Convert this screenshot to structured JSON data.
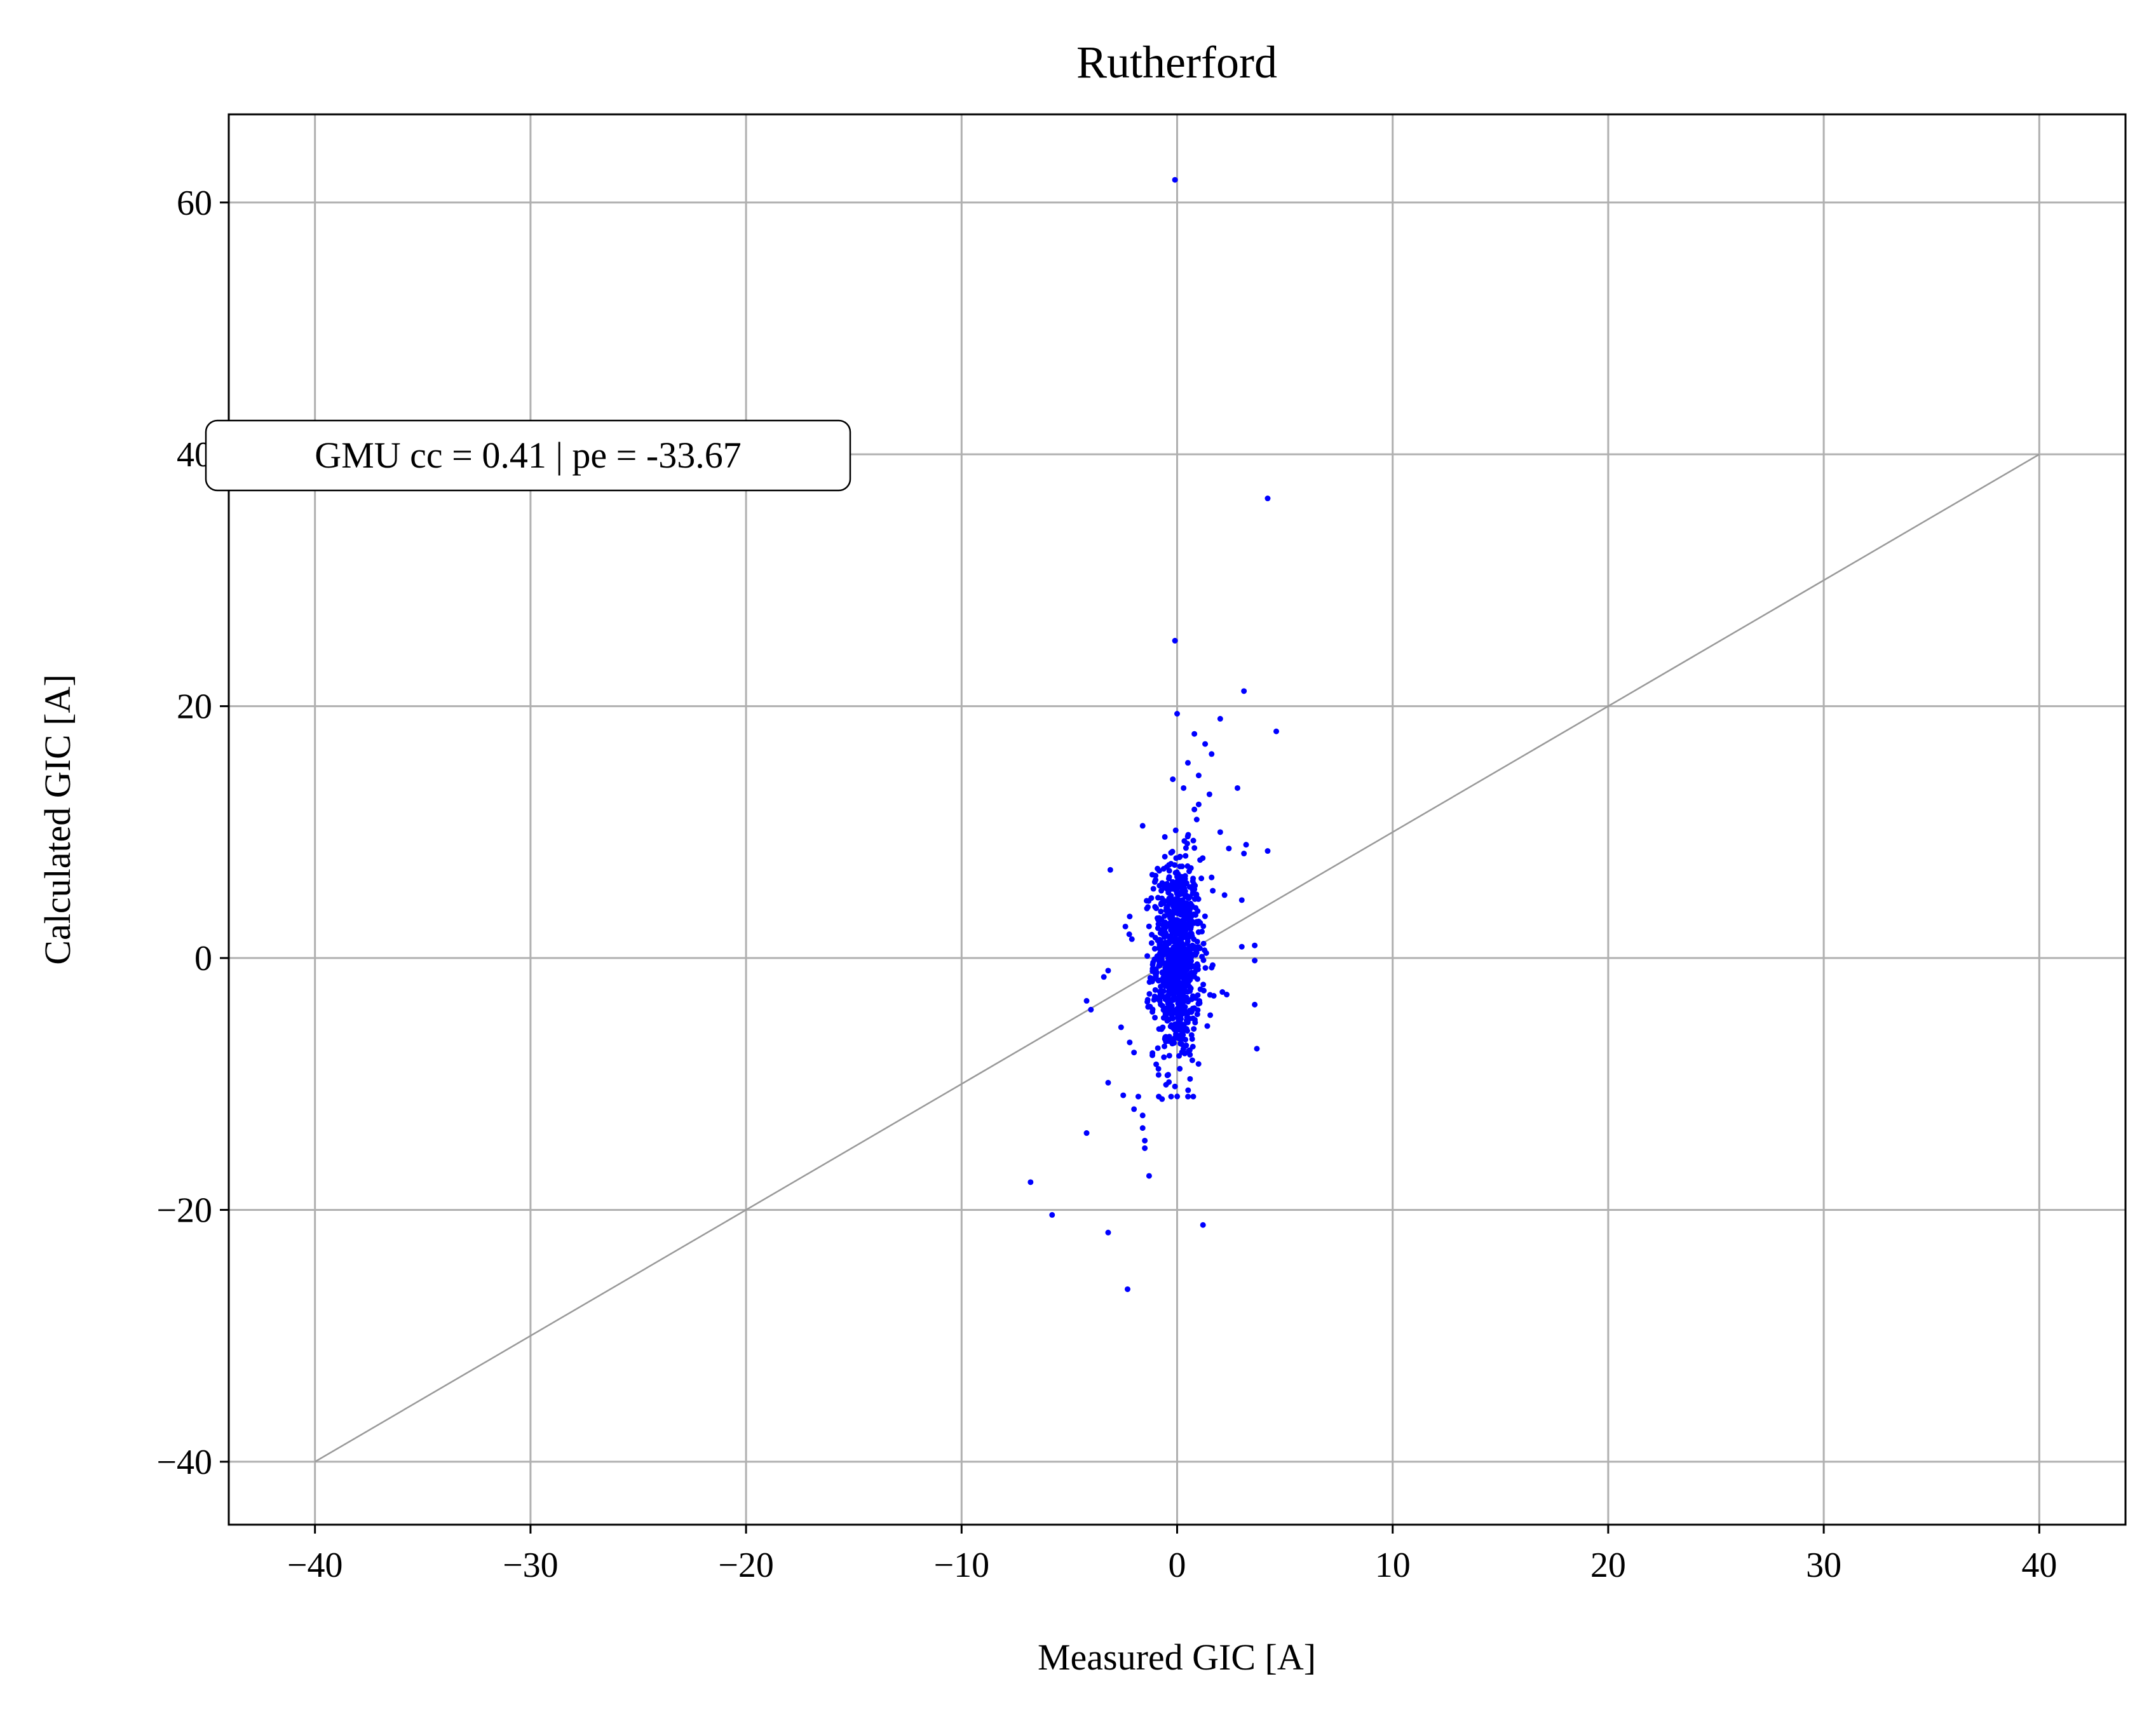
{
  "chart_data": {
    "type": "scatter",
    "title": "Rutherford",
    "xlabel": "Measured GIC [A]",
    "ylabel": "Calculated GIC [A]",
    "xlim": [
      -44,
      44
    ],
    "ylim": [
      -45,
      67
    ],
    "xticks": [
      -40,
      -30,
      -20,
      -10,
      0,
      10,
      20,
      30,
      40
    ],
    "xtick_labels": [
      "−40",
      "−30",
      "−20",
      "−10",
      "0",
      "10",
      "20",
      "30",
      "40"
    ],
    "yticks": [
      -40,
      -20,
      0,
      20,
      40,
      60
    ],
    "ytick_labels": [
      "−40",
      "−20",
      "0",
      "20",
      "40",
      "60"
    ],
    "grid": true,
    "annotation": "GMU cc = 0.41 | pe = -33.67",
    "reference_line": {
      "x": [
        -40,
        40
      ],
      "y": [
        -40,
        40
      ],
      "color": "#999999"
    },
    "series": [
      {
        "color": "#0000ff",
        "cluster": {
          "center": [
            0,
            0
          ],
          "sd": [
            0.55,
            4.0
          ],
          "count": 900,
          "x_range": [
            -2.5,
            2.5
          ],
          "y_range": [
            -11,
            11
          ]
        },
        "points": [
          [
            -0.1,
            61.8
          ],
          [
            4.2,
            36.5
          ],
          [
            -0.1,
            25.2
          ],
          [
            3.1,
            21.2
          ],
          [
            4.6,
            18.0
          ],
          [
            2.0,
            19.0
          ],
          [
            0.0,
            19.4
          ],
          [
            0.8,
            17.8
          ],
          [
            1.3,
            17.0
          ],
          [
            1.6,
            16.2
          ],
          [
            0.5,
            15.5
          ],
          [
            1.0,
            14.5
          ],
          [
            -0.2,
            14.2
          ],
          [
            0.3,
            13.5
          ],
          [
            2.8,
            13.5
          ],
          [
            1.5,
            13.0
          ],
          [
            1.0,
            12.2
          ],
          [
            0.8,
            11.8
          ],
          [
            -1.6,
            10.5
          ],
          [
            2.0,
            10.0
          ],
          [
            3.2,
            9.0
          ],
          [
            2.4,
            8.7
          ],
          [
            4.2,
            8.5
          ],
          [
            3.1,
            8.3
          ],
          [
            -3.1,
            7.0
          ],
          [
            3.0,
            4.6
          ],
          [
            2.2,
            5.0
          ],
          [
            -2.2,
            3.3
          ],
          [
            -2.4,
            2.5
          ],
          [
            -2.1,
            1.5
          ],
          [
            3.6,
            1.0
          ],
          [
            3.0,
            0.9
          ],
          [
            3.6,
            -0.2
          ],
          [
            2.1,
            -2.7
          ],
          [
            3.6,
            -3.7
          ],
          [
            -4.2,
            -3.4
          ],
          [
            -4.0,
            -4.1
          ],
          [
            -3.2,
            -1.0
          ],
          [
            -3.4,
            -1.5
          ],
          [
            -2.6,
            -5.5
          ],
          [
            -2.2,
            -6.7
          ],
          [
            -2.0,
            -7.5
          ],
          [
            3.7,
            -7.2
          ],
          [
            -3.2,
            -9.9
          ],
          [
            -2.5,
            -10.9
          ],
          [
            -1.8,
            -11.0
          ],
          [
            -1.6,
            -12.5
          ],
          [
            -1.6,
            -13.5
          ],
          [
            -1.5,
            -14.5
          ],
          [
            -1.5,
            -15.1
          ],
          [
            -4.2,
            -13.9
          ],
          [
            -1.3,
            -17.3
          ],
          [
            -6.8,
            -17.8
          ],
          [
            -5.8,
            -20.4
          ],
          [
            -3.2,
            -21.8
          ],
          [
            1.2,
            -21.2
          ],
          [
            -2.3,
            -26.3
          ],
          [
            -2.0,
            -12.0
          ],
          [
            -0.7,
            -11.2
          ],
          [
            -0.1,
            -10.2
          ],
          [
            0.6,
            -9.6
          ],
          [
            1.4,
            -5.4
          ],
          [
            1.7,
            -3.0
          ],
          [
            2.3,
            -2.9
          ],
          [
            -1.1,
            5.5
          ],
          [
            -1.0,
            6.2
          ],
          [
            1.6,
            6.4
          ]
        ]
      }
    ]
  }
}
